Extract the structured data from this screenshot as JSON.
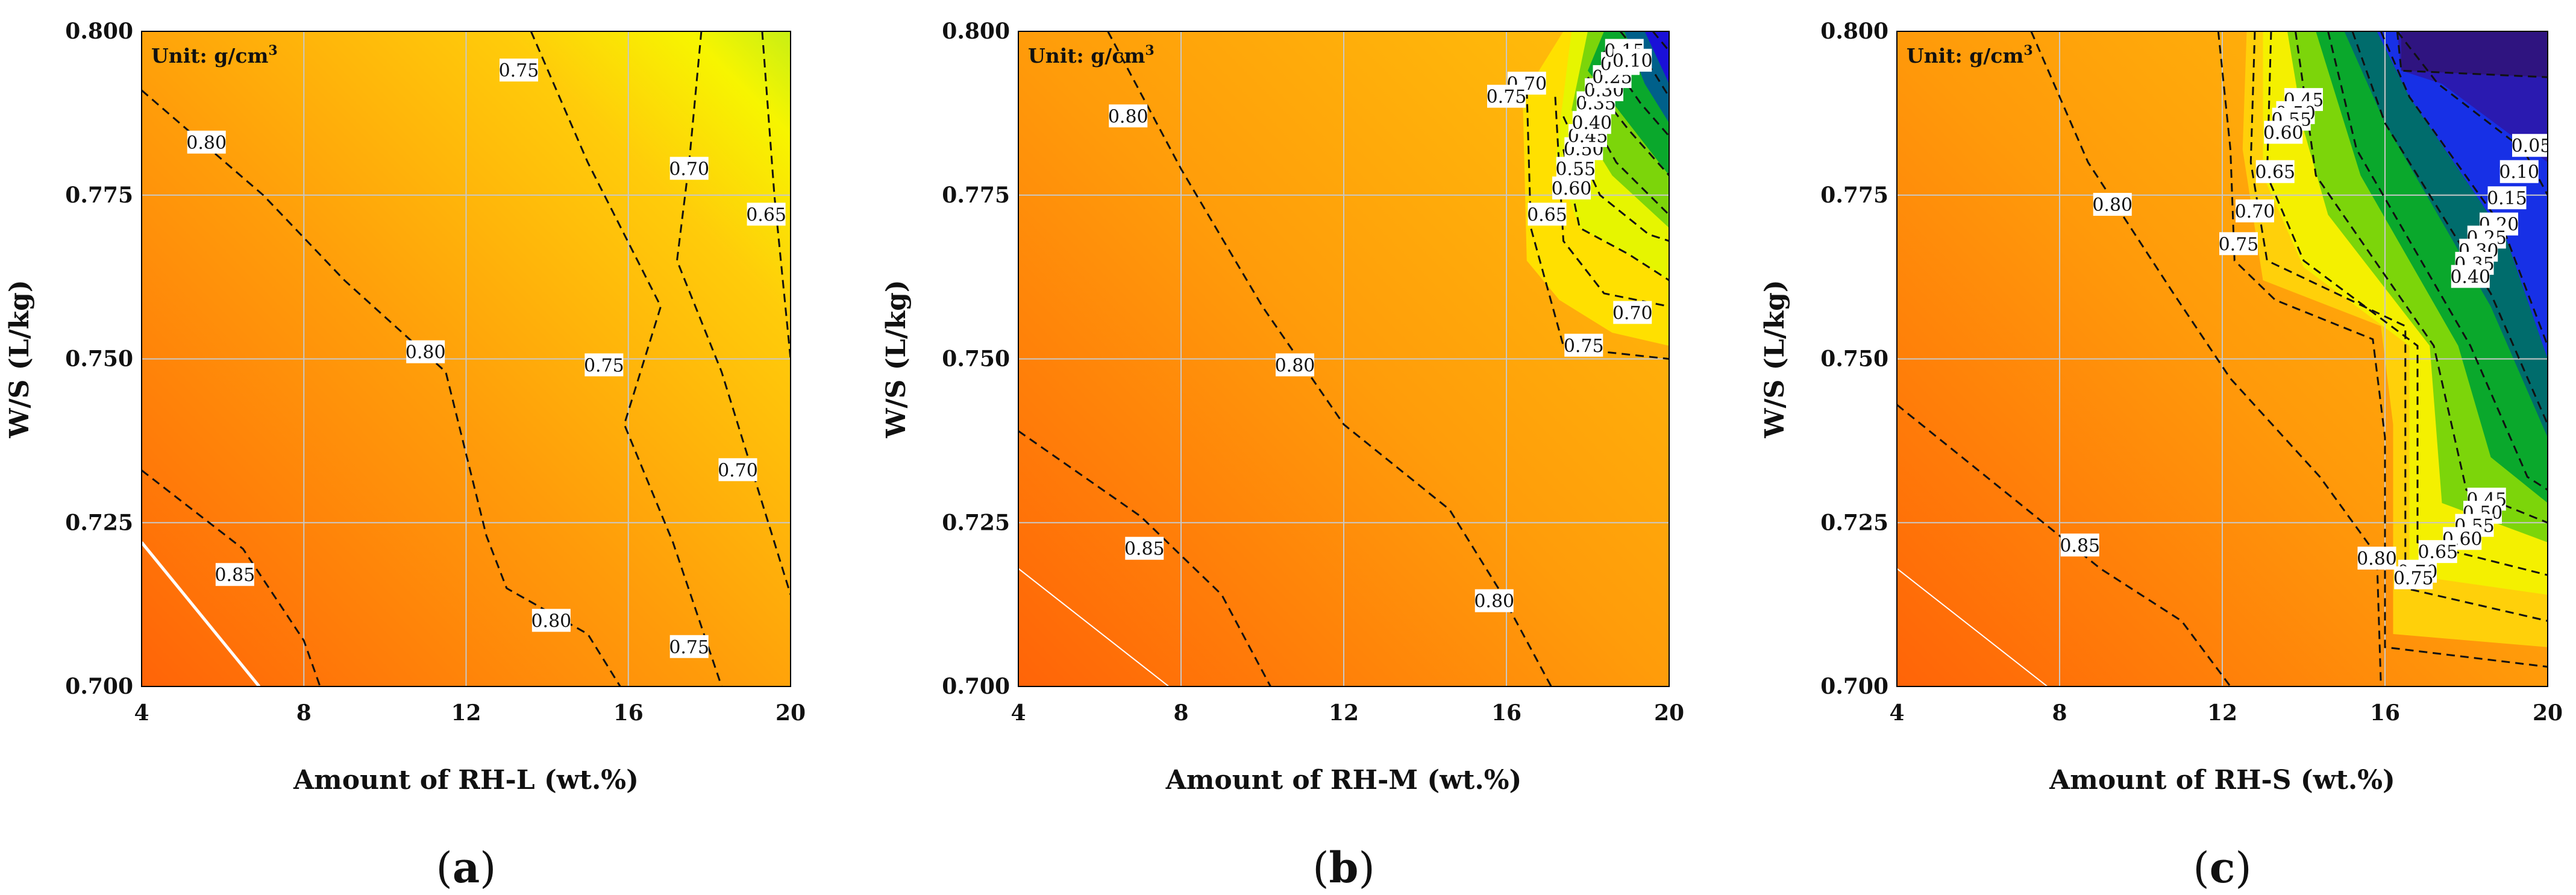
{
  "chart_data": [
    {
      "type": "contour",
      "panel_label": "(a)",
      "panel_letter": "a",
      "unit_label": "Unit: g/cm",
      "unit_superscript": "3",
      "xlabel": "Amount of RH-L (wt.%)",
      "ylabel": "W/S (L/kg)",
      "xlim": [
        4,
        20
      ],
      "ylim": [
        0.7,
        0.8
      ],
      "x_ticks": [
        4,
        8,
        12,
        16,
        20
      ],
      "y_ticks": [
        "0.700",
        "0.725",
        "0.750",
        "0.775",
        "0.800"
      ],
      "grid": true,
      "contours": [
        {
          "level": "0.85",
          "points": [
            [
              4,
              0.733
            ],
            [
              6.5,
              0.721
            ],
            [
              8,
              0.707
            ],
            [
              8.4,
              0.7
            ]
          ]
        },
        {
          "level": "0.80",
          "points": [
            [
              4,
              0.791
            ],
            [
              7,
              0.775
            ],
            [
              9,
              0.762
            ],
            [
              11.5,
              0.748
            ],
            [
              12.5,
              0.723
            ],
            [
              13,
              0.715
            ],
            [
              15,
              0.708
            ],
            [
              15.8,
              0.7
            ]
          ]
        },
        {
          "level": "0.75",
          "points": [
            [
              13.6,
              0.8
            ],
            [
              15,
              0.78
            ],
            [
              16.8,
              0.758
            ],
            [
              15.9,
              0.74
            ],
            [
              17.1,
              0.722
            ],
            [
              18.3,
              0.7
            ]
          ]
        },
        {
          "level": "0.70",
          "points": [
            [
              17.8,
              0.8
            ],
            [
              17.5,
              0.78
            ],
            [
              17.2,
              0.765
            ],
            [
              18.3,
              0.748
            ],
            [
              19.2,
              0.73
            ],
            [
              20,
              0.714
            ]
          ]
        },
        {
          "level": "0.65",
          "points": [
            [
              19.3,
              0.8
            ],
            [
              19.6,
              0.775
            ],
            [
              20,
              0.75
            ]
          ]
        }
      ],
      "labels": [
        {
          "text": "0.80",
          "x": 5.6,
          "y": 0.783
        },
        {
          "text": "0.75",
          "x": 13.3,
          "y": 0.794
        },
        {
          "text": "0.70",
          "x": 17.5,
          "y": 0.779
        },
        {
          "text": "0.65",
          "x": 19.4,
          "y": 0.772
        },
        {
          "text": "0.80",
          "x": 11.0,
          "y": 0.751
        },
        {
          "text": "0.75",
          "x": 15.4,
          "y": 0.749
        },
        {
          "text": "0.70",
          "x": 18.7,
          "y": 0.733
        },
        {
          "text": "0.85",
          "x": 6.3,
          "y": 0.717
        },
        {
          "text": "0.80",
          "x": 14.1,
          "y": 0.71
        },
        {
          "text": "0.75",
          "x": 17.5,
          "y": 0.706
        }
      ]
    },
    {
      "type": "contour",
      "panel_label": "(b)",
      "panel_letter": "b",
      "unit_label": "Unit: g/cm",
      "unit_superscript": "3",
      "xlabel": "Amount of RH-M (wt.%)",
      "ylabel": "W/S (L/kg)",
      "xlim": [
        4,
        20
      ],
      "ylim": [
        0.7,
        0.8
      ],
      "x_ticks": [
        4,
        8,
        12,
        16,
        20
      ],
      "y_ticks": [
        "0.700",
        "0.725",
        "0.750",
        "0.775",
        "0.800"
      ],
      "grid": true,
      "contours": [
        {
          "level": "0.85",
          "points": [
            [
              4,
              0.739
            ],
            [
              7,
              0.726
            ],
            [
              9,
              0.714
            ],
            [
              10.2,
              0.7
            ]
          ]
        },
        {
          "level": "0.80",
          "points": [
            [
              6.2,
              0.8
            ],
            [
              8,
              0.779
            ],
            [
              10,
              0.758
            ],
            [
              12,
              0.74
            ],
            [
              14.6,
              0.727
            ],
            [
              15.8,
              0.715
            ],
            [
              17.1,
              0.7
            ]
          ]
        },
        {
          "level": "0.75",
          "points": [
            [
              16.5,
              0.791
            ],
            [
              16.6,
              0.77
            ],
            [
              17.4,
              0.752
            ],
            [
              18.5,
              0.751
            ],
            [
              20,
              0.75
            ]
          ]
        },
        {
          "level": "0.70",
          "points": [
            [
              17.2,
              0.79
            ],
            [
              17.4,
              0.768
            ],
            [
              18.4,
              0.76
            ],
            [
              20,
              0.758
            ]
          ]
        },
        {
          "level": "0.65",
          "points": [
            [
              17.4,
              0.782
            ],
            [
              17.8,
              0.77
            ],
            [
              19,
              0.766
            ],
            [
              20,
              0.762
            ]
          ]
        },
        {
          "level": "0.60",
          "points": [
            [
              17.4,
              0.787
            ],
            [
              18.3,
              0.775
            ],
            [
              19.5,
              0.769
            ],
            [
              20,
              0.768
            ]
          ]
        },
        {
          "level": "0.50",
          "points": [
            [
              17.8,
              0.79
            ],
            [
              18.7,
              0.78
            ],
            [
              20,
              0.772
            ]
          ]
        },
        {
          "level": "0.40",
          "points": [
            [
              18.0,
              0.793
            ],
            [
              19.0,
              0.785
            ],
            [
              20,
              0.778
            ]
          ]
        },
        {
          "level": "0.30",
          "points": [
            [
              18.4,
              0.797
            ],
            [
              19.3,
              0.789
            ],
            [
              20,
              0.784
            ]
          ]
        },
        {
          "level": "0.20",
          "points": [
            [
              18.8,
              0.8
            ],
            [
              19.6,
              0.794
            ],
            [
              20,
              0.79
            ]
          ]
        },
        {
          "level": "0.10",
          "points": [
            [
              19.6,
              0.8
            ],
            [
              20,
              0.797
            ]
          ]
        }
      ],
      "labels": [
        {
          "text": "0.80",
          "x": 6.7,
          "y": 0.787
        },
        {
          "text": "0.70",
          "x": 16.5,
          "y": 0.792
        },
        {
          "text": "0.75",
          "x": 16.0,
          "y": 0.79
        },
        {
          "text": "0.65",
          "x": 17.0,
          "y": 0.772
        },
        {
          "text": "0.60",
          "x": 17.6,
          "y": 0.776
        },
        {
          "text": "0.55",
          "x": 17.7,
          "y": 0.779
        },
        {
          "text": "0.50",
          "x": 17.9,
          "y": 0.782
        },
        {
          "text": "0.45",
          "x": 18.0,
          "y": 0.784
        },
        {
          "text": "0.40",
          "x": 18.1,
          "y": 0.786
        },
        {
          "text": "0.35",
          "x": 18.2,
          "y": 0.789
        },
        {
          "text": "0.30",
          "x": 18.4,
          "y": 0.791
        },
        {
          "text": "0.25",
          "x": 18.6,
          "y": 0.793
        },
        {
          "text": "0.20",
          "x": 18.8,
          "y": 0.795
        },
        {
          "text": "0.15",
          "x": 18.9,
          "y": 0.797
        },
        {
          "text": "0.10",
          "x": 19.1,
          "y": 0.7955
        },
        {
          "text": "0.70",
          "x": 19.1,
          "y": 0.757
        },
        {
          "text": "0.75",
          "x": 17.9,
          "y": 0.752
        },
        {
          "text": "0.80",
          "x": 10.8,
          "y": 0.749
        },
        {
          "text": "0.85",
          "x": 7.1,
          "y": 0.721
        },
        {
          "text": "0.80",
          "x": 15.7,
          "y": 0.713
        }
      ]
    },
    {
      "type": "contour",
      "panel_label": "(c)",
      "panel_letter": "c",
      "unit_label": "Unit: g/cm",
      "unit_superscript": "3",
      "xlabel": "Amount of RH-S (wt.%)",
      "ylabel": "W/S (L/kg)",
      "xlim": [
        4,
        20
      ],
      "ylim": [
        0.7,
        0.8
      ],
      "x_ticks": [
        4,
        8,
        12,
        16,
        20
      ],
      "y_ticks": [
        "0.700",
        "0.725",
        "0.750",
        "0.775",
        "0.800"
      ],
      "grid": true,
      "contours": [
        {
          "level": "0.85",
          "points": [
            [
              4,
              0.743
            ],
            [
              7,
              0.728
            ],
            [
              9,
              0.718
            ],
            [
              11,
              0.71
            ],
            [
              12.2,
              0.7
            ]
          ]
        },
        {
          "level": "0.80",
          "points": [
            [
              7.3,
              0.8
            ],
            [
              8.7,
              0.78
            ],
            [
              10.8,
              0.76
            ],
            [
              12.2,
              0.747
            ],
            [
              14.4,
              0.732
            ],
            [
              15.8,
              0.72
            ],
            [
              15.9,
              0.7
            ]
          ]
        },
        {
          "level": "0.75",
          "points": [
            [
              11.9,
              0.8
            ],
            [
              12.2,
              0.782
            ],
            [
              12.3,
              0.765
            ],
            [
              13.3,
              0.759
            ],
            [
              15.7,
              0.753
            ],
            [
              16.0,
              0.738
            ],
            [
              16.0,
              0.706
            ],
            [
              20,
              0.703
            ]
          ]
        },
        {
          "level": "0.70",
          "points": [
            [
              12.8,
              0.8
            ],
            [
              12.7,
              0.78
            ],
            [
              13.1,
              0.765
            ],
            [
              16.5,
              0.755
            ],
            [
              16.5,
              0.715
            ],
            [
              20,
              0.71
            ]
          ]
        },
        {
          "level": "0.65",
          "points": [
            [
              13.2,
              0.8
            ],
            [
              13.1,
              0.778
            ],
            [
              14.0,
              0.765
            ],
            [
              16.8,
              0.752
            ],
            [
              16.8,
              0.722
            ],
            [
              20,
              0.717
            ]
          ]
        },
        {
          "level": "0.50",
          "points": [
            [
              13.8,
              0.8
            ],
            [
              14.3,
              0.778
            ],
            [
              17.2,
              0.752
            ],
            [
              18.0,
              0.73
            ],
            [
              20,
              0.725
            ]
          ]
        },
        {
          "level": "0.40",
          "points": [
            [
              14.6,
              0.8
            ],
            [
              15.3,
              0.782
            ],
            [
              18.1,
              0.752
            ],
            [
              19.5,
              0.732
            ],
            [
              20,
              0.73
            ]
          ]
        },
        {
          "level": "0.30",
          "points": [
            [
              15.2,
              0.8
            ],
            [
              16.0,
              0.786
            ],
            [
              18.6,
              0.76
            ],
            [
              20,
              0.74
            ]
          ]
        },
        {
          "level": "0.20",
          "points": [
            [
              15.9,
              0.8
            ],
            [
              16.6,
              0.79
            ],
            [
              18.9,
              0.77
            ],
            [
              20,
              0.752
            ]
          ]
        },
        {
          "level": "0.10",
          "points": [
            [
              16.3,
              0.8
            ],
            [
              17.3,
              0.792
            ],
            [
              19.4,
              0.782
            ],
            [
              20,
              0.775
            ]
          ]
        },
        {
          "level": "0.05",
          "points": [
            [
              16.3,
              0.8
            ],
            [
              16.4,
              0.794
            ],
            [
              20,
              0.793
            ]
          ]
        }
      ],
      "labels": [
        {
          "text": "0.45",
          "x": 14.0,
          "y": 0.7895
        },
        {
          "text": "0.50",
          "x": 13.8,
          "y": 0.7875
        },
        {
          "text": "0.55",
          "x": 13.7,
          "y": 0.7865
        },
        {
          "text": "0.60",
          "x": 13.5,
          "y": 0.7845
        },
        {
          "text": "0.65",
          "x": 13.3,
          "y": 0.7785
        },
        {
          "text": "0.70",
          "x": 12.8,
          "y": 0.7725
        },
        {
          "text": "0.75",
          "x": 12.4,
          "y": 0.7675
        },
        {
          "text": "0.80",
          "x": 9.3,
          "y": 0.7735
        },
        {
          "text": "0.05",
          "x": 19.6,
          "y": 0.7825
        },
        {
          "text": "0.10",
          "x": 19.3,
          "y": 0.7785
        },
        {
          "text": "0.15",
          "x": 19.0,
          "y": 0.7745
        },
        {
          "text": "0.20",
          "x": 18.8,
          "y": 0.7705
        },
        {
          "text": "0.25",
          "x": 18.5,
          "y": 0.7685
        },
        {
          "text": "0.30",
          "x": 18.3,
          "y": 0.7665
        },
        {
          "text": "0.35",
          "x": 18.2,
          "y": 0.7645
        },
        {
          "text": "0.40",
          "x": 18.1,
          "y": 0.7625
        },
        {
          "text": "0.45",
          "x": 18.5,
          "y": 0.7285
        },
        {
          "text": "0.50",
          "x": 18.4,
          "y": 0.7265
        },
        {
          "text": "0.55",
          "x": 18.2,
          "y": 0.7245
        },
        {
          "text": "0.60",
          "x": 17.9,
          "y": 0.7225
        },
        {
          "text": "0.65",
          "x": 17.3,
          "y": 0.7205
        },
        {
          "text": "0.70",
          "x": 16.8,
          "y": 0.7175
        },
        {
          "text": "0.75",
          "x": 16.7,
          "y": 0.7165
        },
        {
          "text": "0.80",
          "x": 15.8,
          "y": 0.7195
        },
        {
          "text": "0.85",
          "x": 8.5,
          "y": 0.7215
        }
      ]
    }
  ]
}
